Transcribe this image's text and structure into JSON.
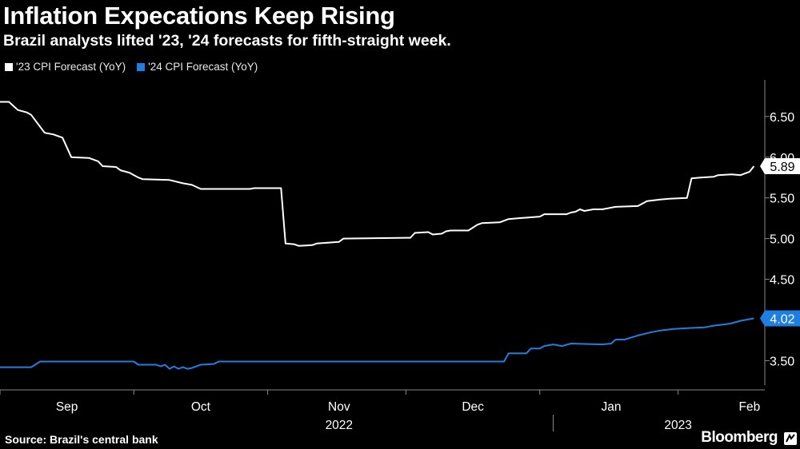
{
  "title": "Inflation Expecations Keep Rising",
  "subtitle": "Brazil analysts lifted '23, '24 forecasts for fifth-straight week.",
  "legend": [
    {
      "label": "'23 CPI Forecast (YoY)",
      "color": "#ffffff"
    },
    {
      "label": "'24 CPI Forecast (YoY)",
      "color": "#1f7fe0"
    }
  ],
  "source": "Source: Brazil's central bank",
  "brand": "Bloomberg",
  "chart_data": {
    "type": "line",
    "x_unit": "days since 2022-08-19",
    "ylim": [
      3.2,
      6.95
    ],
    "yticks": [
      {
        "value": 3.5,
        "label": "3.50"
      },
      {
        "value": 4.5,
        "label": "4.50"
      },
      {
        "value": 5.0,
        "label": "5.00"
      },
      {
        "value": 5.5,
        "label": "5.50"
      },
      {
        "value": 6.0,
        "label": "6.00"
      },
      {
        "value": 6.5,
        "label": "6.50"
      }
    ],
    "xlim": [
      0,
      170
    ],
    "xticks": [
      {
        "value": 15,
        "label": "Sep"
      },
      {
        "value": 45,
        "label": "Oct"
      },
      {
        "value": 76,
        "label": "Nov"
      },
      {
        "value": 106,
        "label": "Dec"
      },
      {
        "value": 137,
        "label": "Jan"
      },
      {
        "value": 168,
        "label": "Feb"
      }
    ],
    "year_labels": [
      {
        "value": 76,
        "label": "2022"
      },
      {
        "value": 152,
        "label": "2023"
      }
    ],
    "year_divider": 124,
    "series": [
      {
        "name": "'23 CPI Forecast (YoY)",
        "color": "#ffffff",
        "end_label": "5.89",
        "points": [
          [
            0,
            6.68
          ],
          [
            2,
            6.68
          ],
          [
            4,
            6.58
          ],
          [
            6,
            6.55
          ],
          [
            7,
            6.52
          ],
          [
            10,
            6.3
          ],
          [
            12,
            6.28
          ],
          [
            14,
            6.24
          ],
          [
            16,
            6.0
          ],
          [
            20,
            5.99
          ],
          [
            22,
            5.95
          ],
          [
            23,
            5.89
          ],
          [
            26,
            5.88
          ],
          [
            27,
            5.84
          ],
          [
            29,
            5.81
          ],
          [
            31,
            5.75
          ],
          [
            32,
            5.73
          ],
          [
            38,
            5.72
          ],
          [
            41,
            5.68
          ],
          [
            43,
            5.66
          ],
          [
            45,
            5.61
          ],
          [
            56,
            5.61
          ],
          [
            57,
            5.62
          ],
          [
            63,
            5.62
          ],
          [
            64,
            4.94
          ],
          [
            66,
            4.93
          ],
          [
            67,
            4.91
          ],
          [
            70,
            4.92
          ],
          [
            71,
            4.94
          ],
          [
            76,
            4.96
          ],
          [
            77,
            5.0
          ],
          [
            92,
            5.01
          ],
          [
            93,
            5.07
          ],
          [
            96,
            5.08
          ],
          [
            97,
            5.05
          ],
          [
            99,
            5.06
          ],
          [
            100,
            5.09
          ],
          [
            101,
            5.1
          ],
          [
            105,
            5.1
          ],
          [
            107,
            5.17
          ],
          [
            108,
            5.19
          ],
          [
            112,
            5.2
          ],
          [
            114,
            5.24
          ],
          [
            116,
            5.25
          ],
          [
            121,
            5.27
          ],
          [
            122,
            5.3
          ],
          [
            127,
            5.3
          ],
          [
            128,
            5.32
          ],
          [
            129,
            5.33
          ],
          [
            130,
            5.36
          ],
          [
            131,
            5.34
          ],
          [
            133,
            5.36
          ],
          [
            135,
            5.36
          ],
          [
            137,
            5.38
          ],
          [
            138,
            5.39
          ],
          [
            143,
            5.4
          ],
          [
            145,
            5.46
          ],
          [
            148,
            5.48
          ],
          [
            150,
            5.49
          ],
          [
            154,
            5.5
          ],
          [
            155,
            5.74
          ],
          [
            157,
            5.75
          ],
          [
            160,
            5.76
          ],
          [
            161,
            5.78
          ],
          [
            164,
            5.79
          ],
          [
            166,
            5.78
          ],
          [
            167,
            5.8
          ],
          [
            168,
            5.82
          ],
          [
            169,
            5.89
          ]
        ]
      },
      {
        "name": "'24 CPI Forecast (YoY)",
        "color": "#1f7fe0",
        "end_label": "4.02",
        "points": [
          [
            0,
            3.42
          ],
          [
            7,
            3.42
          ],
          [
            9,
            3.49
          ],
          [
            30,
            3.49
          ],
          [
            31,
            3.45
          ],
          [
            35,
            3.45
          ],
          [
            36,
            3.43
          ],
          [
            37,
            3.45
          ],
          [
            38,
            3.4
          ],
          [
            39,
            3.43
          ],
          [
            40,
            3.4
          ],
          [
            41,
            3.42
          ],
          [
            42,
            3.4
          ],
          [
            43,
            3.41
          ],
          [
            45,
            3.45
          ],
          [
            48,
            3.46
          ],
          [
            49,
            3.49
          ],
          [
            113,
            3.49
          ],
          [
            114,
            3.59
          ],
          [
            118,
            3.59
          ],
          [
            119,
            3.65
          ],
          [
            121,
            3.65
          ],
          [
            122,
            3.68
          ],
          [
            124,
            3.7
          ],
          [
            126,
            3.68
          ],
          [
            128,
            3.71
          ],
          [
            135,
            3.7
          ],
          [
            137,
            3.71
          ],
          [
            138,
            3.76
          ],
          [
            140,
            3.76
          ],
          [
            143,
            3.81
          ],
          [
            146,
            3.85
          ],
          [
            148,
            3.87
          ],
          [
            151,
            3.89
          ],
          [
            154,
            3.9
          ],
          [
            158,
            3.91
          ],
          [
            160,
            3.93
          ],
          [
            163,
            3.95
          ],
          [
            164,
            3.96
          ],
          [
            166,
            3.99
          ],
          [
            168,
            4.01
          ],
          [
            169,
            4.02
          ]
        ]
      }
    ]
  }
}
